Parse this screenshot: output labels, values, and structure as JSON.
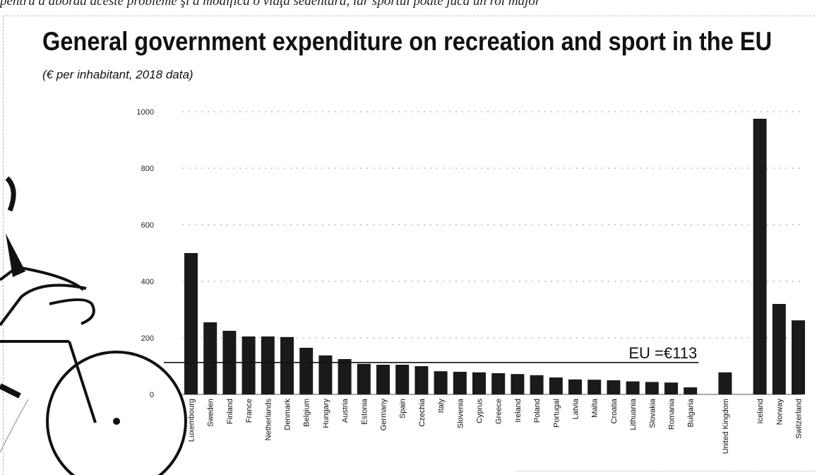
{
  "header": {
    "text": "pentru a aborda aceste probleme şi a modifica o viaţă sedentară, iar sportul poate juca un rol major"
  },
  "chart_data": {
    "type": "bar",
    "title": "General government expenditure on recreation and sport in the EU",
    "subtitle": "(€ per inhabitant, 2018 data)",
    "xlabel": "",
    "ylabel": "",
    "ylim": [
      0,
      1000
    ],
    "yticks": [
      0,
      200,
      400,
      600,
      800,
      1000
    ],
    "grid": true,
    "groups": [
      {
        "categories": [
          "Luxembourg",
          "Sweden",
          "Finland",
          "France",
          "Netherlands",
          "Denmark",
          "Belgium",
          "Hungary",
          "Austria",
          "Estonia",
          "Germany",
          "Spain",
          "Czechia",
          "Italy",
          "Slovenia",
          "Cyprus",
          "Greece",
          "Ireland",
          "Poland",
          "Portugal",
          "Latvia",
          "Malta",
          "Croatia",
          "Lithuania",
          "Slovakia",
          "Romania",
          "Bulgaria"
        ],
        "values": [
          500,
          255,
          225,
          205,
          205,
          203,
          165,
          138,
          125,
          108,
          105,
          105,
          100,
          82,
          80,
          78,
          75,
          72,
          68,
          60,
          53,
          52,
          50,
          46,
          44,
          42,
          25
        ]
      },
      {
        "categories": [
          "United Kingdom"
        ],
        "values": [
          78
        ]
      },
      {
        "categories": [
          "Iceland",
          "Norway",
          "Switzerland"
        ],
        "values": [
          975,
          320,
          262
        ]
      }
    ],
    "reference_line": {
      "label": "EU =€113",
      "value": 113
    },
    "colors": {
      "bar": "#1a1a1a",
      "grid": "#9a9a9a",
      "reference": "#111111"
    }
  },
  "illustration": {
    "name": "cyclist illustration"
  }
}
